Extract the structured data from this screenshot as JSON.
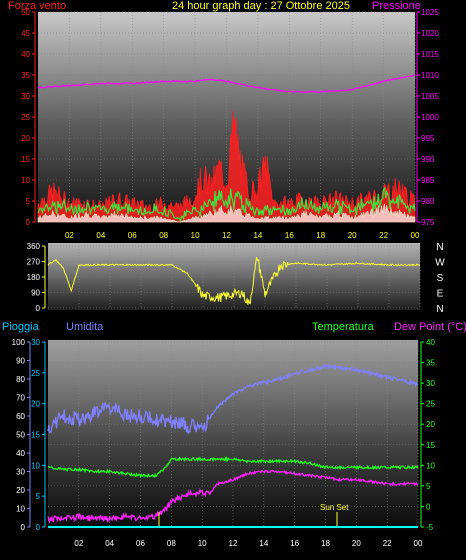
{
  "header": {
    "title": "24 hour graph day : 27 Ottobre 2025",
    "left_label": "Forza vento",
    "right_label": "Pressione"
  },
  "x_tick_labels": [
    "02",
    "04",
    "06",
    "08",
    "10",
    "12",
    "14",
    "16",
    "18",
    "20",
    "22",
    "00"
  ],
  "colors": {
    "wind_avg": "#ffffff",
    "wind_gust": "#ff2020",
    "wind_green": "#40e040",
    "pressure": "#ff00ff",
    "direction": "#ffff30",
    "humidity": "#8080ff",
    "temperature": "#20ff20",
    "dewpoint": "#ff20ff",
    "rain": "#00ffff",
    "sunset": "#ffff30"
  },
  "chart_data": [
    {
      "type": "line",
      "title": "24 hour graph day : 27 Ottobre 2025",
      "x_ticks": [
        "02",
        "04",
        "06",
        "08",
        "10",
        "12",
        "14",
        "16",
        "18",
        "20",
        "22",
        "00"
      ],
      "y_left_label": "Forza vento",
      "y_left_ticks": [
        0,
        5,
        10,
        15,
        20,
        25,
        30,
        35,
        40,
        45,
        50
      ],
      "y_right_label": "Pressione",
      "y_right_ticks": [
        975,
        980,
        985,
        990,
        995,
        1000,
        1005,
        1010,
        1015,
        1020,
        1025
      ],
      "series": [
        {
          "name": "Pressione",
          "axis": "right",
          "x": [
            0,
            2,
            4,
            6,
            8,
            10,
            11,
            12,
            14,
            16,
            18,
            20,
            22,
            24
          ],
          "y": [
            1007,
            1007.5,
            1008,
            1008,
            1008.5,
            1008.5,
            1009,
            1008.5,
            1007,
            1006,
            1006,
            1006.5,
            1008.5,
            1010
          ]
        },
        {
          "name": "gust",
          "axis": "left",
          "x": [
            0,
            1,
            2,
            3,
            4,
            5,
            6,
            7,
            8,
            9,
            10,
            10.5,
            11,
            11.5,
            12,
            12.5,
            13,
            13.5,
            14,
            14.5,
            15,
            16,
            17,
            18,
            19,
            20,
            21,
            22,
            23,
            24
          ],
          "y": [
            5,
            8,
            5,
            5,
            4,
            6,
            5,
            4,
            5,
            4,
            7,
            12,
            9,
            14,
            11,
            25,
            13,
            8,
            9,
            15,
            5,
            5,
            6,
            5,
            6,
            5,
            6,
            8,
            9,
            5
          ]
        },
        {
          "name": "average",
          "axis": "left",
          "x": [
            0,
            1,
            2,
            3,
            4,
            5,
            6,
            7,
            8,
            9,
            10,
            11,
            12,
            13,
            14,
            15,
            16,
            17,
            18,
            19,
            20,
            21,
            22,
            23,
            24
          ],
          "y": [
            1,
            2,
            1,
            2,
            1,
            2,
            1,
            1,
            1,
            0,
            1,
            2,
            3,
            2,
            1,
            1,
            1,
            2,
            1,
            2,
            1,
            2,
            3,
            2,
            1
          ]
        }
      ]
    },
    {
      "type": "line",
      "x_ticks": [
        "02",
        "04",
        "06",
        "08",
        "10",
        "12",
        "14",
        "16",
        "18",
        "20",
        "22",
        "00"
      ],
      "y_left_ticks": [
        0,
        90,
        180,
        270,
        360
      ],
      "y_right_labels": [
        "N",
        "W",
        "S",
        "E",
        "N"
      ],
      "series": [
        {
          "name": "direzione",
          "x": [
            0,
            0.5,
            1,
            1.5,
            2,
            4,
            6,
            8,
            9,
            10,
            11,
            12,
            12.5,
            13,
            13.5,
            14,
            15,
            16,
            18,
            20,
            22,
            24
          ],
          "y": [
            250,
            280,
            230,
            100,
            250,
            250,
            250,
            250,
            200,
            70,
            60,
            80,
            90,
            20,
            300,
            80,
            250,
            260,
            250,
            260,
            250,
            250
          ]
        }
      ]
    },
    {
      "type": "line",
      "x_ticks": [
        "02",
        "04",
        "06",
        "08",
        "10",
        "12",
        "14",
        "16",
        "18",
        "20",
        "22",
        "00"
      ],
      "left_axis_1_label": "Pioggia",
      "left_axis_1_ticks": [
        0,
        10,
        20,
        30,
        40,
        50,
        60,
        70,
        80,
        90,
        100
      ],
      "left_axis_2_label": "Umidita",
      "left_axis_2_ticks": [
        0,
        5,
        10,
        15,
        20,
        25,
        30
      ],
      "right_axis_1_label": "Temperatura",
      "right_axis_2_label": "Dew Point (°C)",
      "right_axis_ticks": [
        -5,
        0,
        5,
        10,
        15,
        20,
        25,
        30,
        35,
        40
      ],
      "annotation": "Sun Set",
      "series": [
        {
          "name": "Umidita",
          "axis": "pct",
          "x": [
            0,
            1,
            2,
            3,
            4,
            5,
            6,
            7,
            8,
            9,
            10,
            11,
            12,
            13,
            14,
            15,
            16,
            17,
            18,
            19,
            20,
            21,
            22,
            23,
            24
          ],
          "y": [
            53,
            60,
            58,
            62,
            65,
            60,
            60,
            58,
            57,
            55,
            53,
            65,
            72,
            76,
            78,
            80,
            83,
            85,
            87,
            86,
            85,
            83,
            81,
            79,
            77
          ]
        },
        {
          "name": "Temperatura",
          "axis": "temp",
          "x": [
            0,
            1,
            2,
            3,
            4,
            5,
            6,
            7,
            7.5,
            8,
            9,
            10,
            11,
            12,
            13,
            14,
            15,
            16,
            17,
            18,
            19,
            20,
            21,
            22,
            23,
            24
          ],
          "y": [
            9.5,
            9,
            9,
            8.5,
            8.5,
            8,
            7.5,
            7.5,
            9,
            11.5,
            11.5,
            11.5,
            11.5,
            11.5,
            11,
            11,
            11,
            11,
            10.5,
            9.5,
            9.5,
            9.5,
            9.5,
            9.5,
            9.5,
            9.5
          ]
        },
        {
          "name": "Dew Point",
          "axis": "temp",
          "x": [
            0,
            1,
            2,
            3,
            4,
            5,
            6,
            7,
            7.5,
            8,
            9,
            10,
            10.5,
            11,
            12,
            13,
            14,
            15,
            16,
            17,
            18,
            19,
            20,
            21,
            22,
            23,
            24
          ],
          "y": [
            -3,
            -3,
            -2.5,
            -3,
            -3,
            -2.5,
            -3,
            -2.5,
            -1,
            1,
            3,
            3.5,
            3,
            5.5,
            6.5,
            8,
            8.5,
            8.5,
            8,
            7.5,
            7,
            6.5,
            6.5,
            6,
            5.5,
            5.5,
            5.5
          ]
        }
      ]
    }
  ],
  "bottom": {
    "pioggia": "Pioggia",
    "umidita": "Umidita",
    "temperatura": "Temperatura",
    "dewpoint": "Dew Point (°C)",
    "sunset": "Sun Set"
  }
}
